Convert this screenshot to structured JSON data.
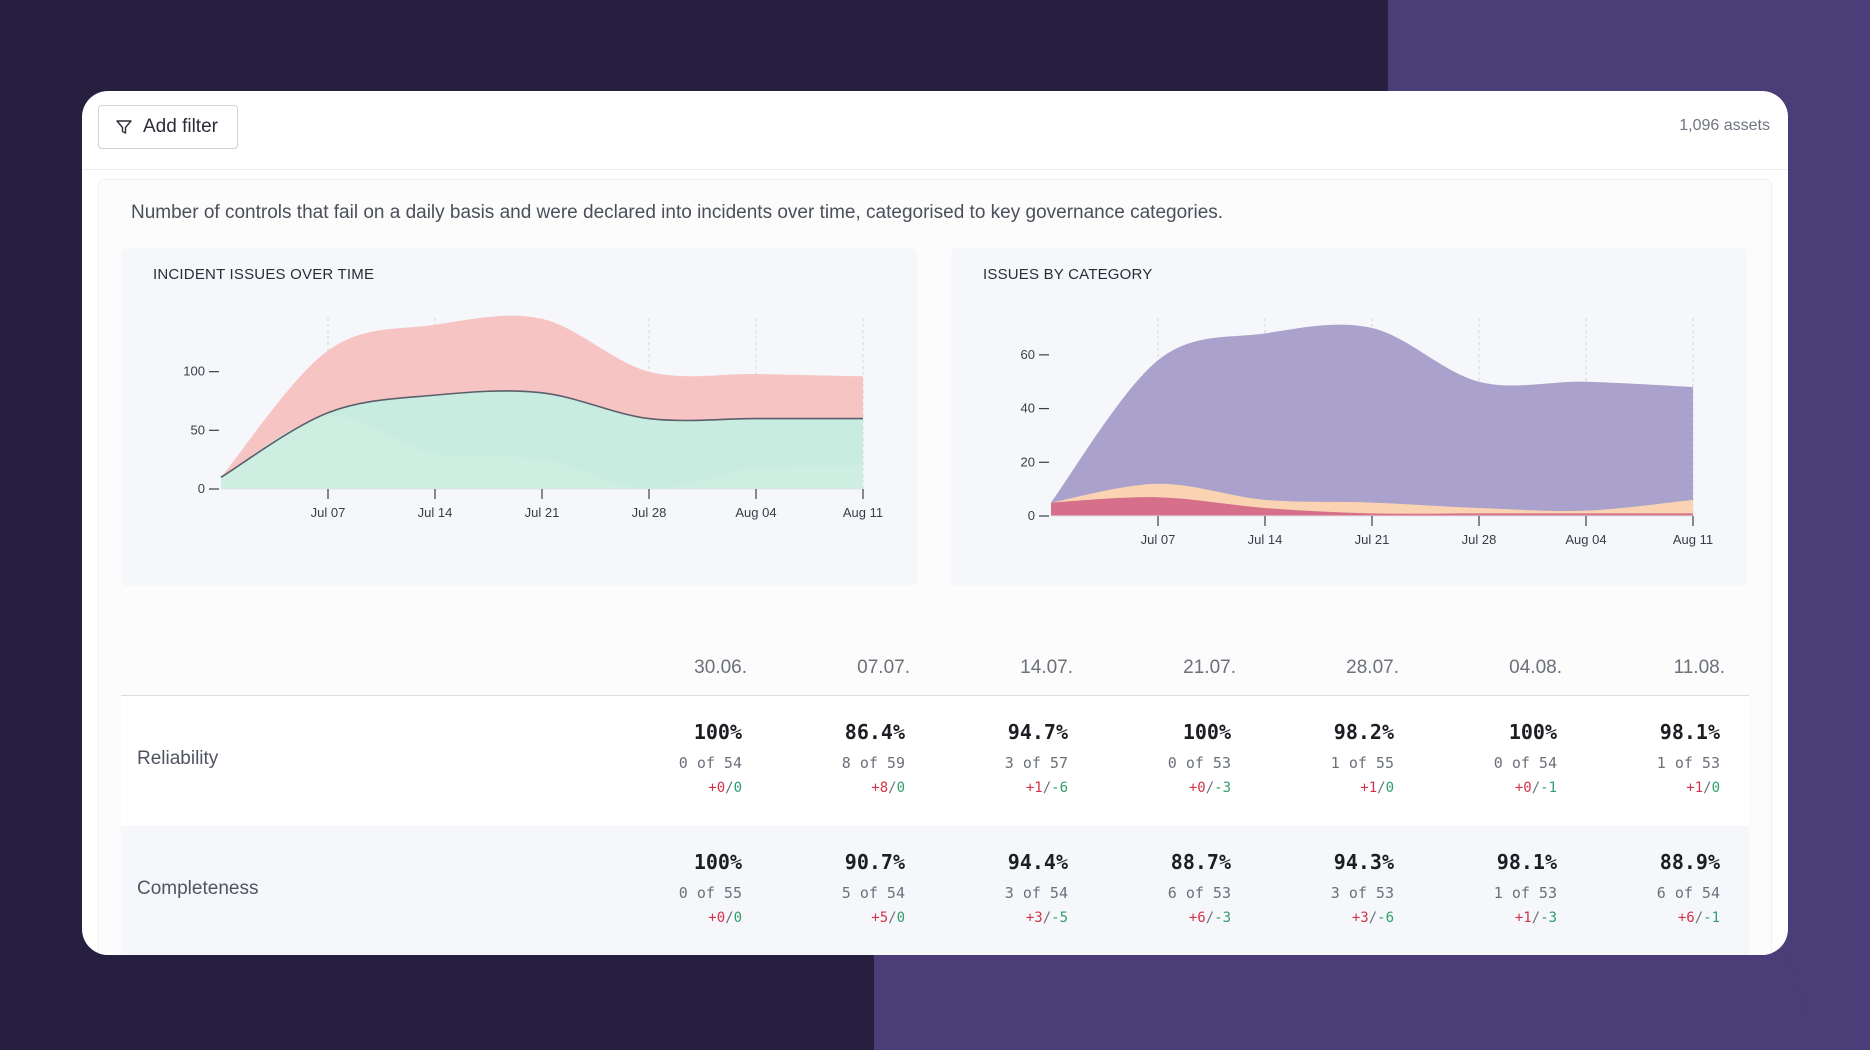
{
  "toolbar": {
    "add_filter_label": "Add filter",
    "assets_count": "1,096 assets"
  },
  "description": "Number of controls that fail on a daily basis and were declared into incidents over time, categorised to key governance categories.",
  "chart_data": [
    {
      "type": "area",
      "title": "INCIDENT ISSUES OVER TIME",
      "x": [
        "Jun 30",
        "Jul 07",
        "Jul 14",
        "Jul 21",
        "Jul 28",
        "Aug 04",
        "Aug 11"
      ],
      "x_ticks": [
        "Jul 07",
        "Jul 14",
        "Jul 21",
        "Jul 28",
        "Aug 04",
        "Aug 11"
      ],
      "y_ticks": [
        "0",
        "50",
        "100"
      ],
      "ylim": [
        0,
        150
      ],
      "series": [
        {
          "color": "#f7c4c4",
          "values": [
            10,
            118,
            140,
            145,
            100,
            98,
            96
          ]
        },
        {
          "color": "#c9ece0",
          "values": [
            10,
            65,
            80,
            82,
            60,
            60,
            60
          ]
        },
        {
          "color": "#cfeee2",
          "values": [
            10,
            62,
            30,
            25,
            0,
            18,
            20
          ]
        }
      ],
      "line": {
        "color": "#5a5f6b",
        "values": [
          10,
          65,
          80,
          82,
          60,
          60,
          60
        ]
      }
    },
    {
      "type": "area",
      "title": "ISSUES BY CATEGORY",
      "x": [
        "Jun 30",
        "Jul 07",
        "Jul 14",
        "Jul 21",
        "Jul 28",
        "Aug 04",
        "Aug 11"
      ],
      "x_ticks": [
        "Jul 07",
        "Jul 14",
        "Jul 21",
        "Jul 28",
        "Aug 04",
        "Aug 11"
      ],
      "y_ticks": [
        "0",
        "20",
        "40",
        "60"
      ],
      "ylim": [
        0,
        70
      ],
      "series": [
        {
          "color": "#aaa2cc",
          "values": [
            5,
            58,
            68,
            70,
            50,
            50,
            48
          ]
        },
        {
          "color": "#fad3b2",
          "values": [
            5,
            12,
            6,
            5,
            3,
            2,
            6
          ]
        },
        {
          "color": "#d6708a",
          "values": [
            5,
            7,
            3,
            1,
            1,
            1,
            1
          ]
        }
      ]
    }
  ],
  "table": {
    "dates": [
      "30.06.",
      "07.07.",
      "14.07.",
      "21.07.",
      "28.07.",
      "04.08.",
      "11.08."
    ],
    "rows": [
      {
        "label": "Reliability",
        "cells": [
          {
            "pct": "100%",
            "count": "0 of 54",
            "plus": "+0",
            "minus": "0"
          },
          {
            "pct": "86.4%",
            "count": "8 of 59",
            "plus": "+8",
            "minus": "0"
          },
          {
            "pct": "94.7%",
            "count": "3 of 57",
            "plus": "+1",
            "minus": "-6"
          },
          {
            "pct": "100%",
            "count": "0 of 53",
            "plus": "+0",
            "minus": "-3"
          },
          {
            "pct": "98.2%",
            "count": "1 of 55",
            "plus": "+1",
            "minus": "0"
          },
          {
            "pct": "100%",
            "count": "0 of 54",
            "plus": "+0",
            "minus": "-1"
          },
          {
            "pct": "98.1%",
            "count": "1 of 53",
            "plus": "+1",
            "minus": "0"
          }
        ]
      },
      {
        "label": "Completeness",
        "cells": [
          {
            "pct": "100%",
            "count": "0 of 55",
            "plus": "+0",
            "minus": "0"
          },
          {
            "pct": "90.7%",
            "count": "5 of 54",
            "plus": "+5",
            "minus": "0"
          },
          {
            "pct": "94.4%",
            "count": "3 of 54",
            "plus": "+3",
            "minus": "-5"
          },
          {
            "pct": "88.7%",
            "count": "6 of 53",
            "plus": "+6",
            "minus": "-3"
          },
          {
            "pct": "94.3%",
            "count": "3 of 53",
            "plus": "+3",
            "minus": "-6"
          },
          {
            "pct": "98.1%",
            "count": "1 of 53",
            "plus": "+1",
            "minus": "-3"
          },
          {
            "pct": "88.9%",
            "count": "6 of 54",
            "plus": "+6",
            "minus": "-1"
          }
        ]
      }
    ]
  }
}
